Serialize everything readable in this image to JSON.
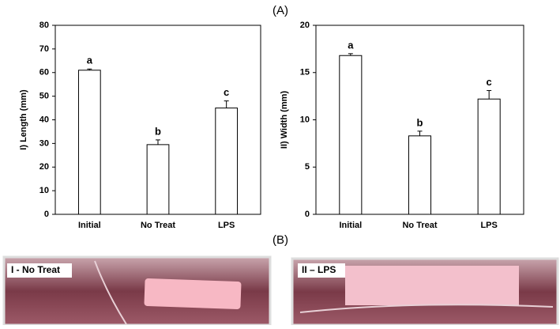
{
  "panel_labels": [
    "(A)",
    "(B)"
  ],
  "chart_data": [
    {
      "type": "bar",
      "ylabel": "I) Length (mm)",
      "categories": [
        "Initial",
        "No Treat",
        "LPS"
      ],
      "values": [
        61,
        29.5,
        45
      ],
      "errors": [
        0.5,
        2,
        3
      ],
      "letters": [
        "a",
        "b",
        "c"
      ],
      "color": "#ffffff",
      "ylim": [
        0,
        80
      ],
      "yticks": [
        0,
        10,
        20,
        30,
        40,
        50,
        60,
        70,
        80
      ]
    },
    {
      "type": "bar",
      "ylabel": "II) Width (mm)",
      "categories": [
        "Initial",
        "No Treat",
        "LPS"
      ],
      "values": [
        16.8,
        8.3,
        12.2
      ],
      "errors": [
        0.2,
        0.5,
        0.9
      ],
      "letters": [
        "a",
        "b",
        "c"
      ],
      "color": "#ffffff",
      "ylim": [
        0,
        20
      ],
      "yticks": [
        0,
        5,
        10,
        15,
        20
      ]
    }
  ],
  "photos": [
    {
      "label": "I -  No Treat"
    },
    {
      "label": "II – LPS"
    }
  ]
}
